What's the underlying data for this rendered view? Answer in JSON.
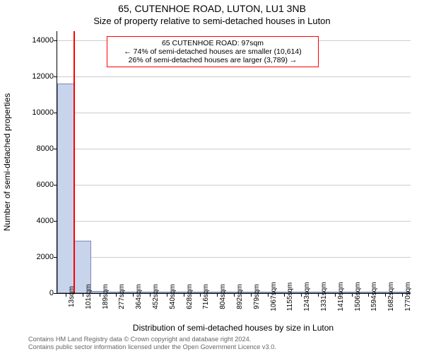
{
  "title_line1": "65, CUTENHOE ROAD, LUTON, LU1 3NB",
  "title_line2": "Size of property relative to semi-detached houses in Luton",
  "chart": {
    "type": "histogram",
    "y_axis_label": "Number of semi-detached properties",
    "x_axis_label": "Distribution of semi-detached houses by size in Luton",
    "ylim": [
      0,
      14500
    ],
    "y_ticks": [
      0,
      2000,
      4000,
      6000,
      8000,
      10000,
      12000,
      14000
    ],
    "x_tick_labels": [
      "13sqm",
      "101sqm",
      "189sqm",
      "277sqm",
      "364sqm",
      "452sqm",
      "540sqm",
      "628sqm",
      "716sqm",
      "804sqm",
      "892sqm",
      "979sqm",
      "1067sqm",
      "1155sqm",
      "1243sqm",
      "1331sqm",
      "1419sqm",
      "1506sqm",
      "1594sqm",
      "1682sqm",
      "1770sqm"
    ],
    "bar_values": [
      11600,
      2900,
      120,
      10,
      5,
      5,
      5,
      5,
      5,
      5,
      5,
      5,
      5,
      5,
      5,
      5,
      5,
      5,
      5,
      5,
      5
    ],
    "bar_fill_color": "#c8d4ec",
    "bar_border_color": "#7a8bb0",
    "grid_color": "#cccccc",
    "background_color": "#ffffff",
    "axis_color": "#000000",
    "marker": {
      "position_sqm": 97,
      "color": "#ff0000"
    },
    "annotation": {
      "line1": "65 CUTENHOE ROAD: 97sqm",
      "line2": "← 74% of semi-detached houses are smaller (10,614)",
      "line3": "26% of semi-detached houses are larger (3,789) →",
      "border_color": "#ff0000",
      "bg_color": "#ffffff"
    }
  },
  "footer": {
    "line1": "Contains HM Land Registry data © Crown copyright and database right 2024.",
    "line2": "Contains public sector information licensed under the Open Government Licence v3.0."
  }
}
